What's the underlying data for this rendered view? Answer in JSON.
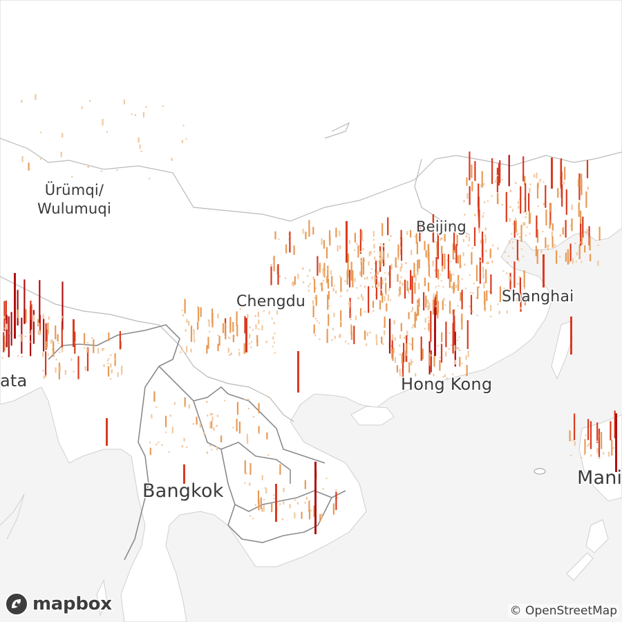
{
  "map": {
    "style_colors": {
      "water": "#f4f4f4",
      "land": "#ffffff",
      "border": "#b5b5b5",
      "low_density": "#f0c9a0",
      "mid_density": "#e89a55",
      "high_density": "#d93a1f",
      "peak_density": "#b01010"
    },
    "labels": [
      {
        "id": "urumqi",
        "text": "Ürümqi/\nWulumuqi"
      },
      {
        "id": "beijing",
        "text": "Beijing"
      },
      {
        "id": "chengdu",
        "text": "Chengdu"
      },
      {
        "id": "shanghai",
        "text": "Shanghai"
      },
      {
        "id": "hong-kong",
        "text": "Hong Kong"
      },
      {
        "id": "kolkata",
        "text": "ata"
      },
      {
        "id": "bangkok",
        "text": "Bangkok"
      },
      {
        "id": "manila",
        "text": "Mani"
      }
    ],
    "logo": {
      "text": "mapbox",
      "icon": "mapbox-logo-icon"
    },
    "attribution": "© OpenStreetMap"
  }
}
